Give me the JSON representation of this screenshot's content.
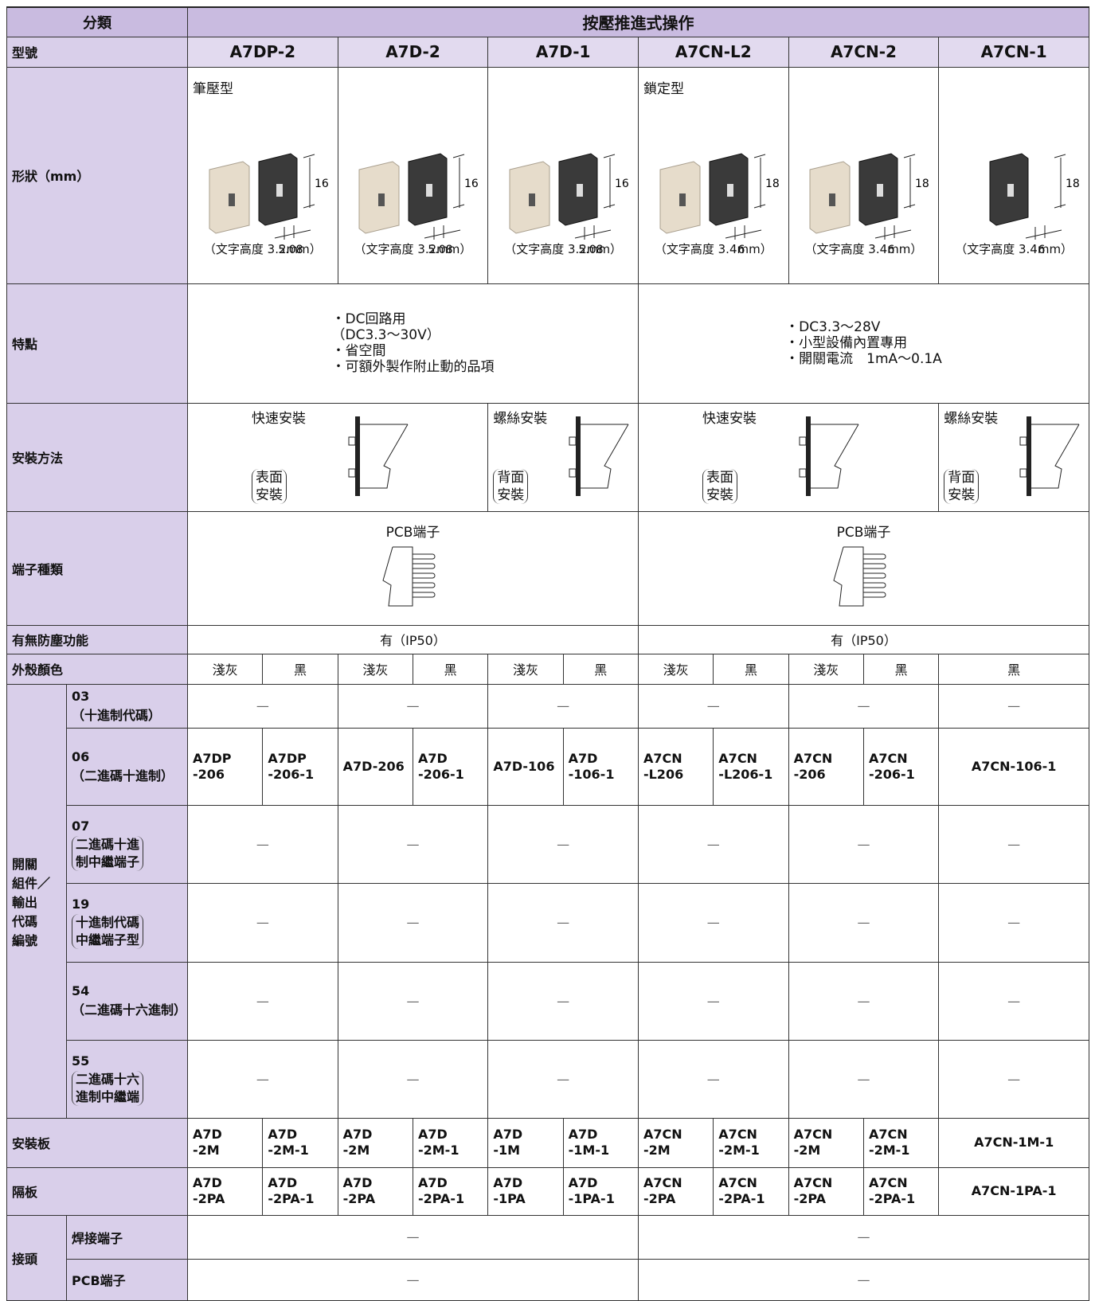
{
  "title_row": {
    "label": "分類",
    "value": "按壓推進式操作"
  },
  "model_row": {
    "label": "型號",
    "models": [
      "A7DP-2",
      "A7D-2",
      "A7D-1",
      "A7CN-L2",
      "A7CN-2",
      "A7CN-1"
    ]
  },
  "shape_row": {
    "label": "形狀（mm）",
    "type_labels": [
      "筆壓型",
      "鎖定型"
    ],
    "items": [
      {
        "height": "16",
        "width": "5.08",
        "note": "（文字高度 3.2mm）"
      },
      {
        "height": "16",
        "width": "5.08",
        "note": "（文字高度 3.2mm）"
      },
      {
        "height": "16",
        "width": "5.08",
        "note": "（文字高度 3.2mm）"
      },
      {
        "height": "18",
        "width": "6",
        "note": "（文字高度 3.4mm）"
      },
      {
        "height": "18",
        "width": "6",
        "note": "（文字高度 3.4mm）"
      },
      {
        "height": "18",
        "width": "6",
        "note": "（文字高度 3.4mm）"
      }
    ]
  },
  "features_row": {
    "label": "特點",
    "groups": [
      [
        "・DC回路用",
        "（DC3.3～30V）",
        "・省空間",
        "・可額外製作附止動的品項"
      ],
      [
        "・DC3.3～28V",
        "・小型設備內置專用",
        "・開關電流　1mA～0.1A"
      ]
    ]
  },
  "mounting_row": {
    "label": "安裝方法",
    "methods": [
      {
        "name": "快速安裝",
        "side": "表面\n安裝"
      },
      {
        "name": "螺絲安裝",
        "side": "背面\n安裝"
      },
      {
        "name": "快速安裝",
        "side": "表面\n安裝"
      },
      {
        "name": "螺絲安裝",
        "side": "背面\n安裝"
      }
    ]
  },
  "terminal_row": {
    "label": "端子種類",
    "groups": [
      "PCB端子",
      "PCB端子"
    ]
  },
  "dustproof_row": {
    "label": "有無防塵功能",
    "groups": [
      "有（IP50）",
      "有（IP50）"
    ]
  },
  "color_row": {
    "label": "外殼顏色",
    "colors": [
      "淺灰",
      "黑",
      "淺灰",
      "黑",
      "淺灰",
      "黑",
      "淺灰",
      "黑",
      "淺灰",
      "黑",
      "黑"
    ]
  },
  "switch_codes": {
    "label": "開關\n組件／\n輸出\n代碼\n編號",
    "rows": [
      {
        "code": "03",
        "desc": "（十進制代碼）",
        "cells": [
          "—",
          "—",
          "—",
          "—",
          "—",
          "—"
        ]
      },
      {
        "code": "06",
        "desc": "（二進碼十進制）",
        "cells": [
          "A7DP\n-206",
          "A7DP\n-206-1",
          "A7D-206",
          "A7D\n-206-1",
          "A7D-106",
          "A7D\n-106-1",
          "A7CN\n-L206",
          "A7CN\n-L206-1",
          "A7CN\n-206",
          "A7CN\n-206-1",
          "A7CN-106-1"
        ]
      },
      {
        "code": "07",
        "desc": "二進碼十進\n制中繼端子",
        "cells": [
          "—",
          "—",
          "—",
          "—",
          "—",
          "—"
        ]
      },
      {
        "code": "19",
        "desc": "十進制代碼\n中繼端子型",
        "cells": [
          "—",
          "—",
          "—",
          "—",
          "—",
          "—"
        ]
      },
      {
        "code": "54",
        "desc": "（二進碼十六進制）",
        "cells": [
          "—",
          "—",
          "—",
          "—",
          "—",
          "—"
        ]
      },
      {
        "code": "55",
        "desc": "二進碼十六\n進制中繼端",
        "cells": [
          "—",
          "—",
          "—",
          "—",
          "—",
          "—"
        ]
      }
    ]
  },
  "mounting_plate_row": {
    "label": "安裝板",
    "cells": [
      "A7D\n-2M",
      "A7D\n-2M-1",
      "A7D\n-2M",
      "A7D\n-2M-1",
      "A7D\n-1M",
      "A7D\n-1M-1",
      "A7CN\n-2M",
      "A7CN\n-2M-1",
      "A7CN\n-2M",
      "A7CN\n-2M-1",
      "A7CN-1M-1"
    ]
  },
  "partition_row": {
    "label": "隔板",
    "cells": [
      "A7D\n-2PA",
      "A7D\n-2PA-1",
      "A7D\n-2PA",
      "A7D\n-2PA-1",
      "A7D\n-1PA",
      "A7D\n-1PA-1",
      "A7CN\n-2PA",
      "A7CN\n-2PA-1",
      "A7CN\n-2PA",
      "A7CN\n-2PA-1",
      "A7CN-1PA-1"
    ]
  },
  "connector": {
    "label": "接頭",
    "rows": [
      {
        "label": "焊接端子",
        "groups": [
          "—",
          "—"
        ]
      },
      {
        "label": "PCB端子",
        "groups": [
          "—",
          "—"
        ]
      }
    ]
  }
}
